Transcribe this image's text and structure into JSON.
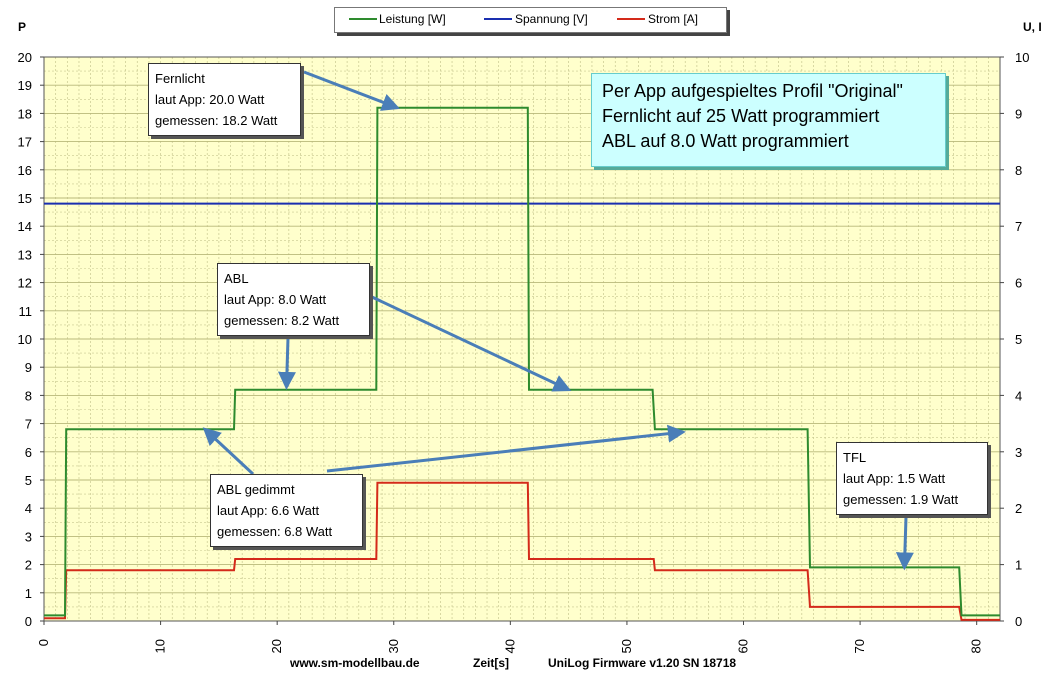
{
  "chart_data": {
    "type": "line",
    "xlabel": "Zeit[s]",
    "y_left_label": "P",
    "y_right_label": "U, I",
    "xlim": [
      0,
      82
    ],
    "ylim_left": [
      0,
      20
    ],
    "ylim_right": [
      0,
      10
    ],
    "x_ticks": [
      0,
      10,
      20,
      30,
      40,
      50,
      60,
      70,
      80
    ],
    "y_left_ticks": [
      0,
      1,
      2,
      3,
      4,
      5,
      6,
      7,
      8,
      9,
      10,
      11,
      12,
      13,
      14,
      15,
      16,
      17,
      18,
      19,
      20
    ],
    "y_right_ticks": [
      0,
      1,
      2,
      3,
      4,
      5,
      6,
      7,
      8,
      9,
      10
    ],
    "grid": true,
    "legend_position": "top-center",
    "series": [
      {
        "name": "Leistung [W]",
        "axis": "left",
        "color": "#2e8b2e",
        "x": [
          0,
          1.8,
          1.9,
          15,
          16.3,
          16.4,
          28,
          28.5,
          28.6,
          41.5,
          41.6,
          42,
          52.2,
          52.4,
          65.5,
          65.7,
          78.5,
          78.7,
          82
        ],
        "y": [
          0.2,
          0.2,
          6.8,
          6.8,
          6.8,
          8.2,
          8.2,
          8.2,
          18.2,
          18.2,
          8.2,
          8.2,
          8.2,
          6.8,
          6.8,
          1.9,
          1.9,
          0.2,
          0.2
        ]
      },
      {
        "name": "Spannung [V]",
        "axis": "right",
        "color": "#1a2fb0",
        "x": [
          0,
          82
        ],
        "y": [
          7.4,
          7.4
        ]
      },
      {
        "name": "Strom [A]",
        "axis": "right",
        "color": "#d42a1a",
        "x": [
          0,
          1.8,
          1.9,
          16.3,
          16.4,
          28.5,
          28.6,
          41.5,
          41.6,
          52.3,
          52.4,
          65.5,
          65.7,
          78.5,
          78.7,
          82
        ],
        "y": [
          0.05,
          0.05,
          0.9,
          0.9,
          1.1,
          1.1,
          2.45,
          2.45,
          1.1,
          1.1,
          0.9,
          0.9,
          0.25,
          0.25,
          0.02,
          0.02
        ]
      }
    ],
    "annotations": [
      {
        "id": "fernlicht",
        "lines": [
          "Fernlicht",
          "laut App: 20.0 Watt",
          "gemessen: 18.2 Watt"
        ],
        "arrows_to": [
          [
            30.3,
            18.2
          ]
        ]
      },
      {
        "id": "abl",
        "lines": [
          "ABL",
          "laut App: 8.0 Watt",
          "gemessen: 8.2 Watt"
        ],
        "arrows_to": [
          [
            20.8,
            8.3
          ],
          [
            45,
            8.2
          ]
        ]
      },
      {
        "id": "abl-gedimmt",
        "lines": [
          "ABL gedimmt",
          "laut App: 6.6 Watt",
          "gemessen: 6.8 Watt"
        ],
        "arrows_to": [
          [
            13.8,
            6.8
          ],
          [
            54.8,
            6.7
          ]
        ]
      },
      {
        "id": "tfl",
        "lines": [
          "TFL",
          "laut App: 1.5 Watt",
          "gemessen: 1.9 Watt"
        ],
        "arrows_to": [
          [
            73.8,
            1.9
          ]
        ]
      }
    ]
  },
  "profile_box": {
    "line1": "Per App aufgespieltes Profil \"Original\"",
    "line2": "Fernlicht auf 25 Watt programmiert",
    "line3": "ABL auf 8.0 Watt programmiert"
  },
  "footer": {
    "website": "www.sm-modellbau.de",
    "xlabel": "Zeit[s]",
    "firmware": "UniLog  Firmware  v1.20  SN 18718"
  },
  "colors": {
    "plot_background": "#ffffcc",
    "grid": "#c8c890"
  }
}
